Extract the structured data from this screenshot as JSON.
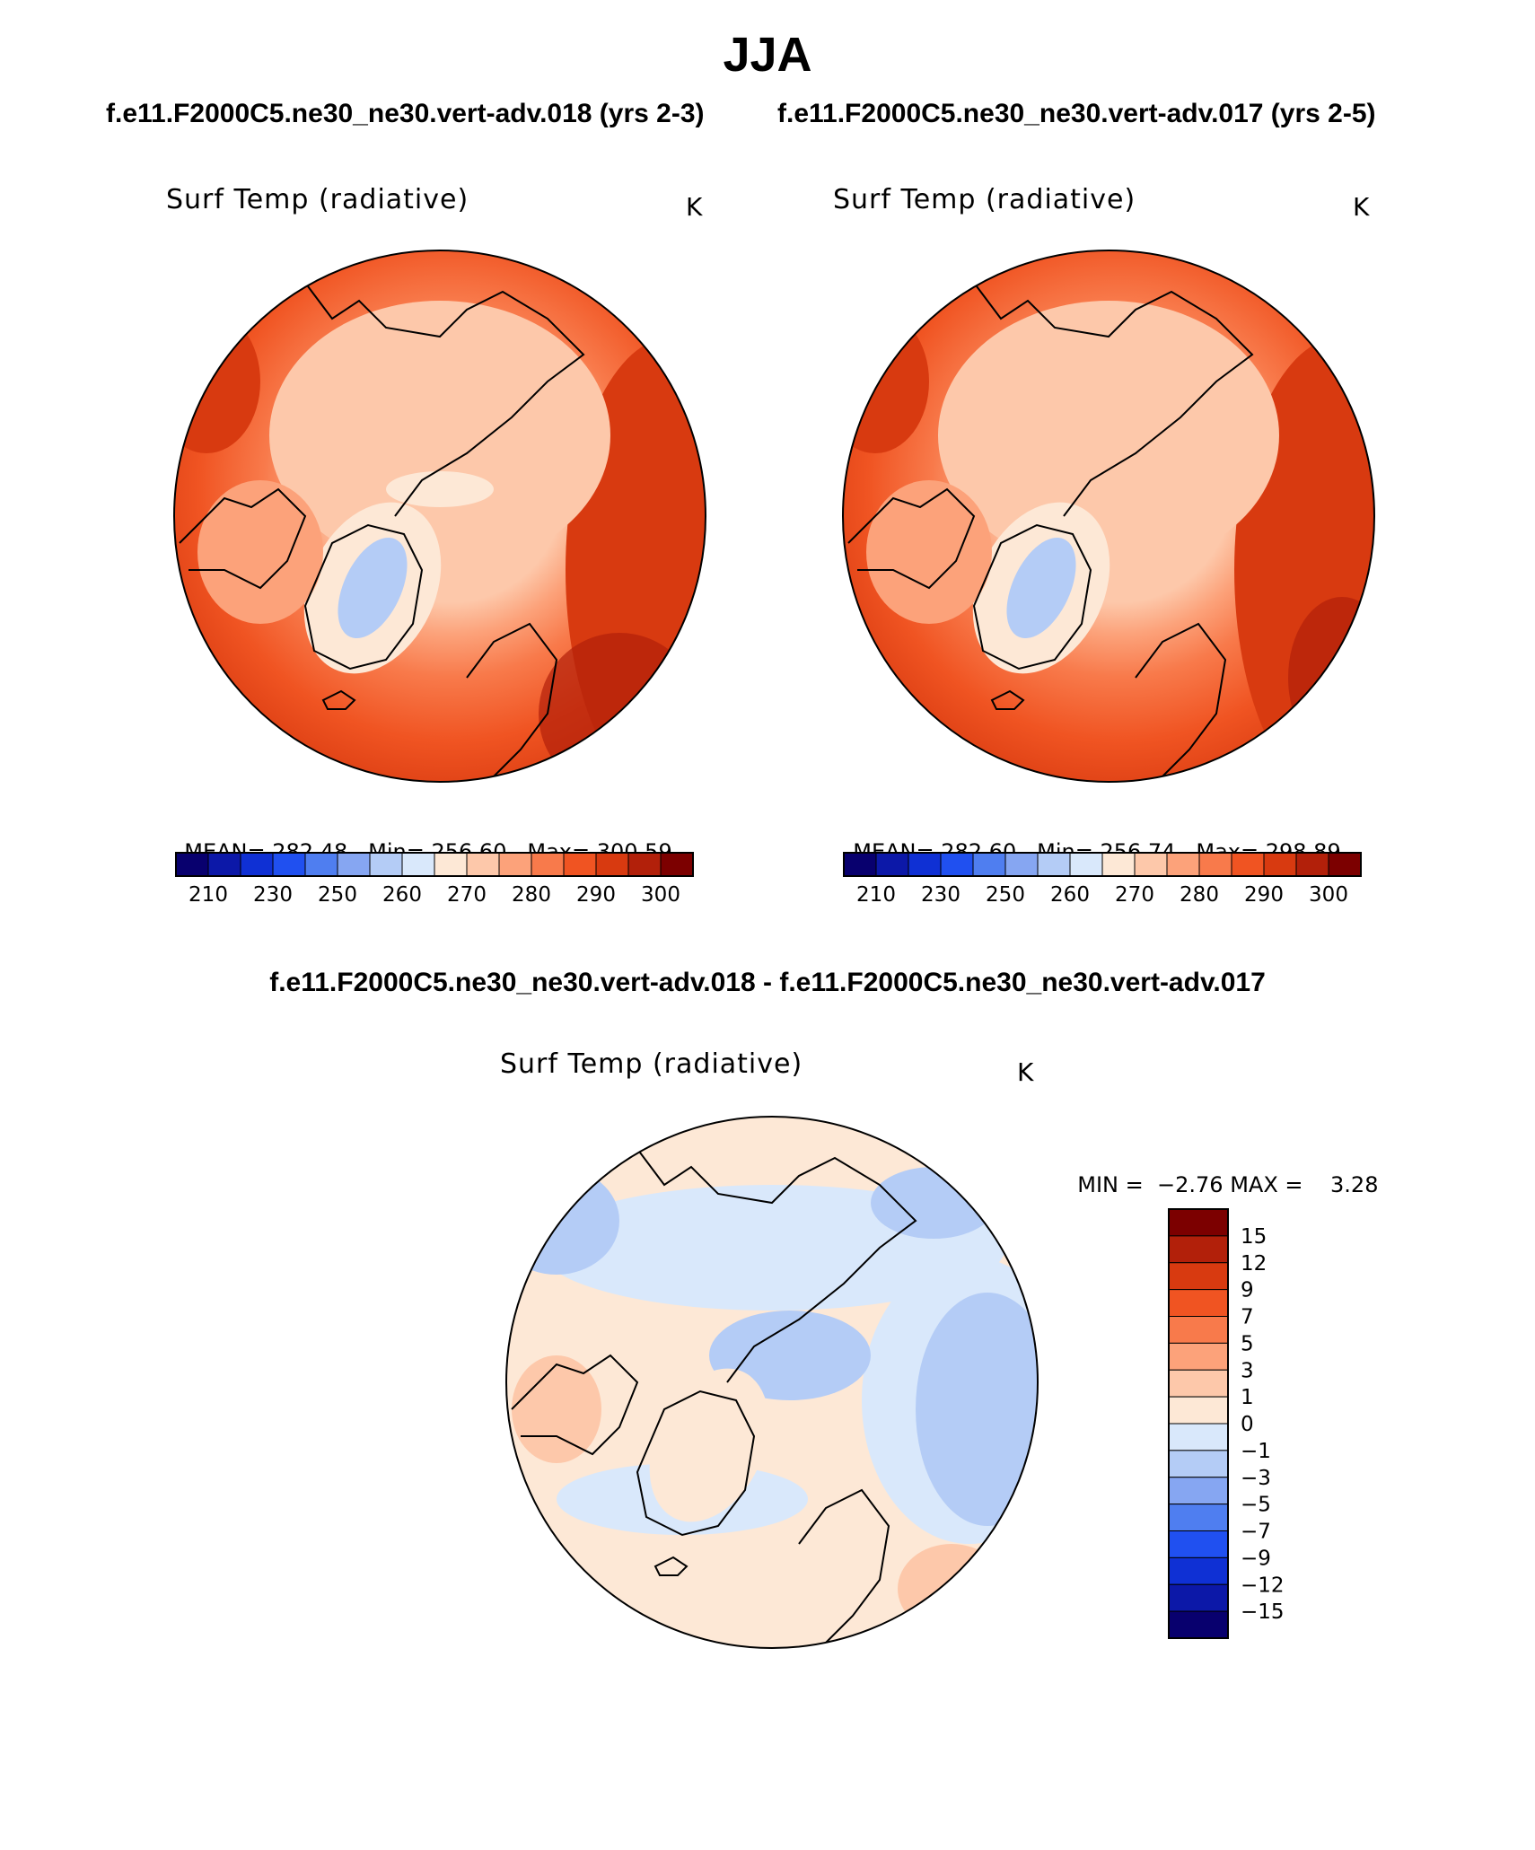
{
  "season": "JJA",
  "panels": [
    {
      "case_title": "f.e11.F2000C5.ne30_ne30.vert-adv.018 (yrs 2-3)",
      "variable": "Surf Temp (radiative)",
      "units": "K",
      "stats": {
        "mean_label": "MEAN=",
        "mean": "282.48",
        "min_label": "Min=",
        "min": "256.60",
        "max_label": "Max=",
        "max": "300.59"
      }
    },
    {
      "case_title": "f.e11.F2000C5.ne30_ne30.vert-adv.017 (yrs 2-5)",
      "variable": "Surf Temp (radiative)",
      "units": "K",
      "stats": {
        "mean_label": "MEAN=",
        "mean": "282.60",
        "min_label": "Min=",
        "min": "256.74",
        "max_label": "Max=",
        "max": "298.89"
      }
    }
  ],
  "abs_colorbar": {
    "colors": [
      "#08006e",
      "#0c18a8",
      "#0f30d4",
      "#2050f0",
      "#4f7ef0",
      "#86a6f2",
      "#b4ccf6",
      "#d9e8fb",
      "#fde8d6",
      "#fdc8aa",
      "#fca27a",
      "#f87a4b",
      "#f05422",
      "#d83a10",
      "#b2200a",
      "#7c0000"
    ],
    "tick_labels": [
      "210",
      "230",
      "250",
      "260",
      "270",
      "280",
      "290",
      "300"
    ]
  },
  "diff_panel": {
    "title": "f.e11.F2000C5.ne30_ne30.vert-adv.018 - f.e11.F2000C5.ne30_ne30.vert-adv.017",
    "variable": "Surf Temp (radiative)",
    "units": "K",
    "min_label": "MIN =",
    "min": "−2.76",
    "max_label": "MAX =",
    "max": "3.28",
    "colorbar": {
      "colors": [
        "#7c0000",
        "#b2200a",
        "#d83a10",
        "#f05422",
        "#f87a4b",
        "#fca27a",
        "#fdc8aa",
        "#fde8d6",
        "#d9e8fb",
        "#b4ccf6",
        "#86a6f2",
        "#4f7ef0",
        "#2050f0",
        "#0f30d4",
        "#0c18a8",
        "#08006e"
      ],
      "tick_labels": [
        "15",
        "12",
        "9",
        "7",
        "5",
        "3",
        "1",
        "0",
        "−1",
        "−3",
        "−5",
        "−7",
        "−9",
        "−12",
        "−15"
      ]
    }
  }
}
